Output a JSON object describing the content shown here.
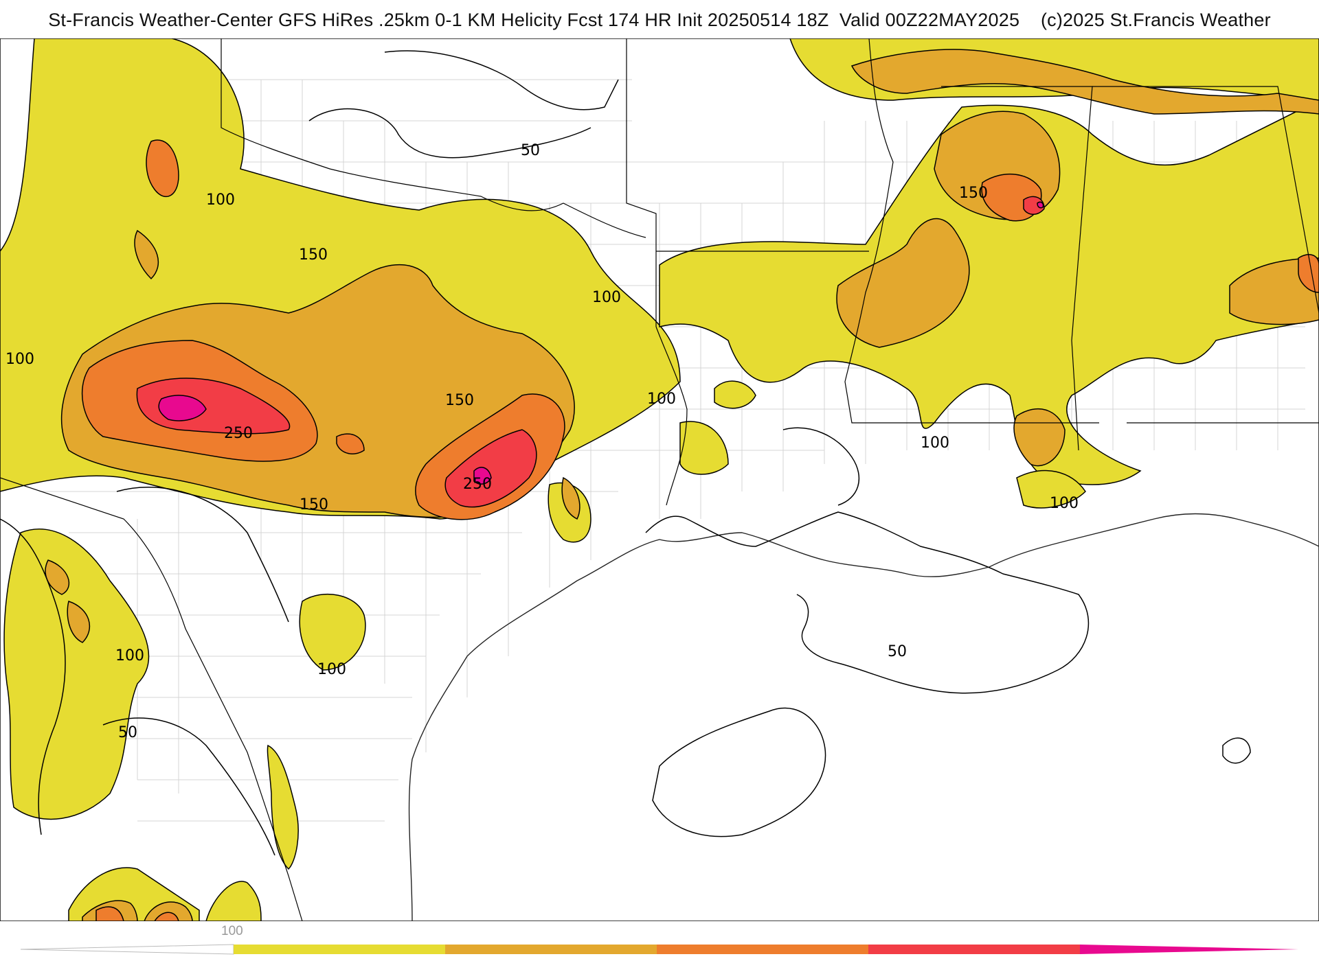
{
  "header": {
    "title": "St-Francis Weather-Center GFS HiRes .25km 0-1 KM Helicity Fcst 174 HR Init 20250514 18Z  Valid 00Z22MAY2025    (c)2025 St.Francis Weather"
  },
  "map": {
    "contour_labels": {
      "l50_a": "50",
      "l100_a": "100",
      "l150_a": "150",
      "l100_b": "100",
      "l100_west": "100",
      "l250_a": "250",
      "l150_b": "150",
      "l150_c": "150",
      "l250_b": "250",
      "l150_d": "150",
      "l100_c": "100",
      "l100_d": "100",
      "l100_e": "100",
      "l100_f": "100",
      "l50_b": "50",
      "l100_g": "100",
      "l50_c": "50"
    },
    "fill_colors": {
      "100-150": "#e6dc32",
      "150-200": "#e3a82e",
      "200-250": "#ee7d2d",
      "250-300": "#f23d46",
      "300+": "#e8098f"
    }
  },
  "colorbar": {
    "label": "100",
    "segments": [
      "#e6dc32",
      "#e3a82e",
      "#ee7d2d",
      "#f23d46",
      "#e8098f"
    ]
  }
}
